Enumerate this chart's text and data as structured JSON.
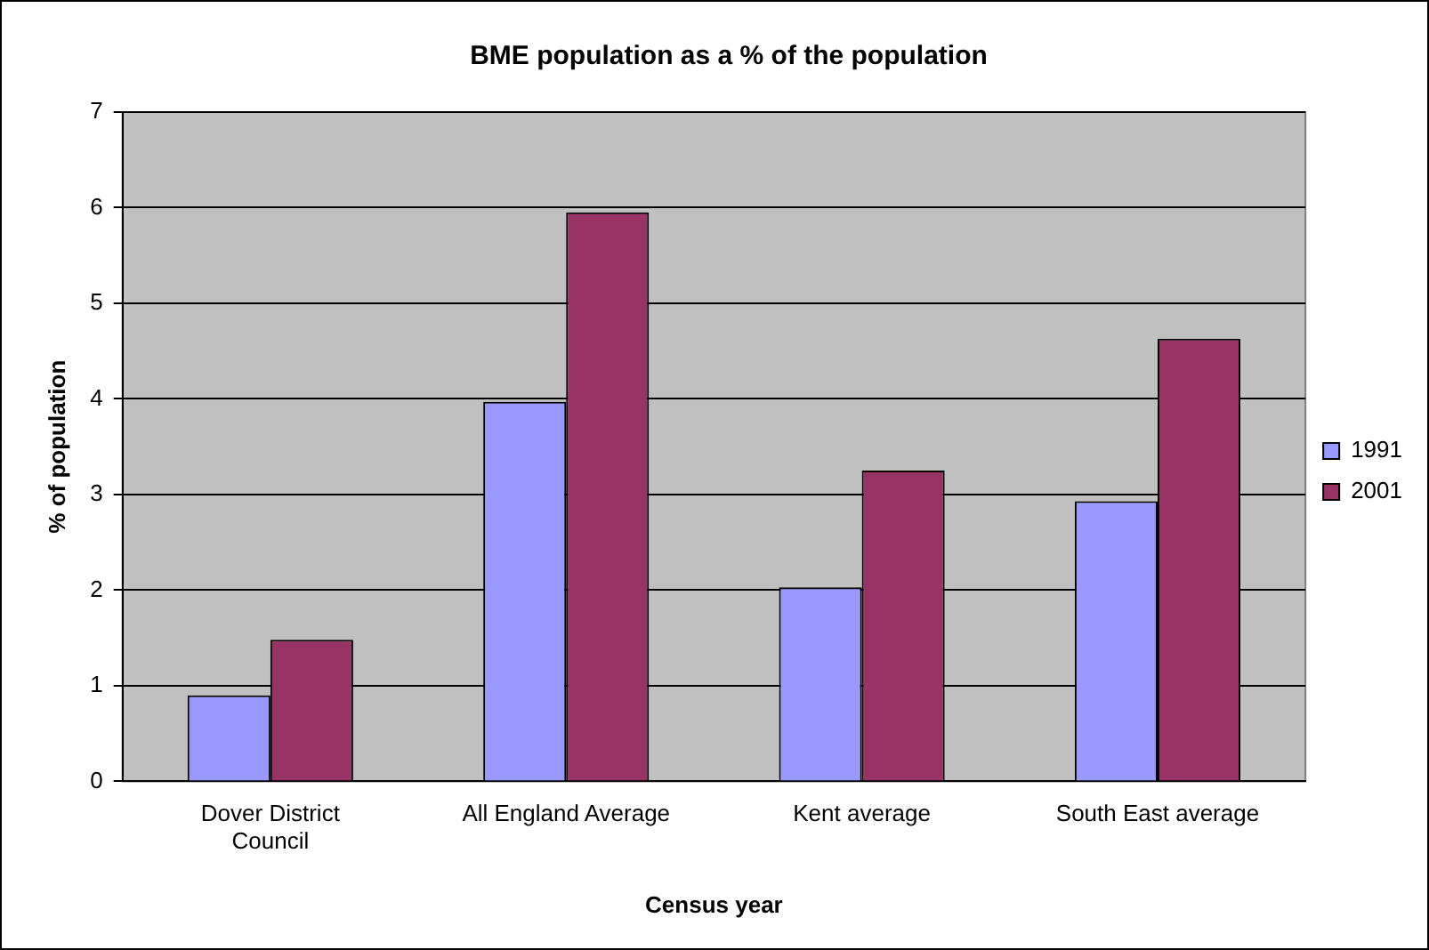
{
  "chart_data": {
    "type": "bar",
    "title": "BME population as a % of the population",
    "xlabel": "Census year",
    "ylabel": "% of population",
    "categories": [
      "Dover District Council",
      "All England Average",
      "Kent average",
      "South East average"
    ],
    "series": [
      {
        "name": "1991",
        "color": "#9999ff",
        "values": [
          0.9,
          3.97,
          2.03,
          2.93
        ]
      },
      {
        "name": "2001",
        "color": "#993366",
        "values": [
          1.48,
          5.95,
          3.25,
          4.63
        ]
      }
    ],
    "ylim": [
      0,
      7
    ],
    "yticks": [
      0,
      1,
      2,
      3,
      4,
      5,
      6,
      7
    ],
    "grid": "y",
    "legend": "right"
  }
}
